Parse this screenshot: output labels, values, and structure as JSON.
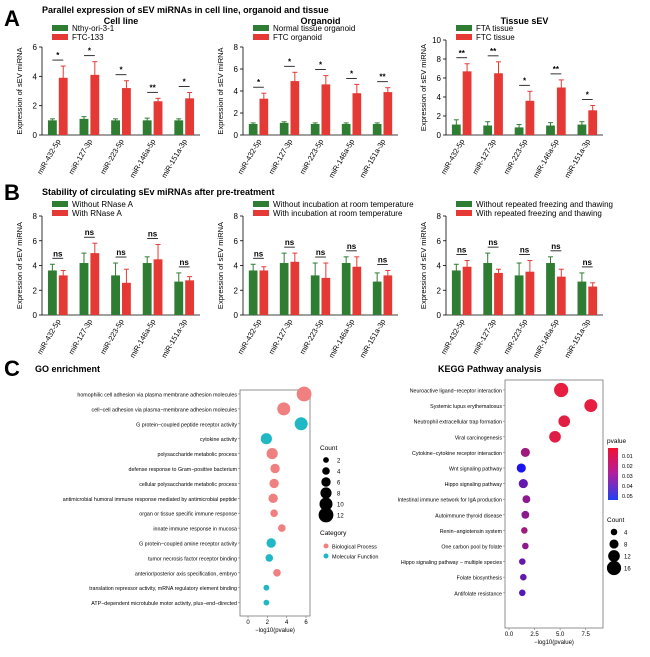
{
  "page": {
    "section_a": "A",
    "section_b": "B",
    "section_c": "C",
    "title_a": "Parallel expression of sEV miRNAs in cell line, organoid and tissue",
    "title_b": "Stability of circulating sEv miRNAs after pre-treatment"
  },
  "colors": {
    "green": "#2e7d32",
    "red": "#e53935"
  },
  "chart_data": [
    {
      "id": "a1",
      "type": "bar",
      "title": "Cell line",
      "ylabel": "Expression of sEV miRNA",
      "ylim": [
        0,
        6
      ],
      "yticks": [
        0,
        2,
        4,
        6
      ],
      "categories": [
        "miR-432-5p",
        "miR-127-3p",
        "miR-223-5p",
        "miR-146a-5p",
        "miR-151a-3p"
      ],
      "series": [
        {
          "name": "Nthy-ori-3-1",
          "values": [
            1.0,
            1.1,
            1.0,
            1.0,
            1.0
          ],
          "errors": [
            0.1,
            0.15,
            0.1,
            0.15,
            0.1
          ]
        },
        {
          "name": "FTC-133",
          "values": [
            3.9,
            4.1,
            3.2,
            2.3,
            2.5
          ],
          "errors": [
            0.8,
            0.9,
            0.5,
            0.2,
            0.4
          ]
        }
      ],
      "significance": [
        "*",
        "*",
        "*",
        "**",
        "*"
      ]
    },
    {
      "id": "a2",
      "type": "bar",
      "title": "Organoid",
      "ylabel": "Expression of sEV miRNA",
      "ylim": [
        0,
        8
      ],
      "yticks": [
        0,
        2,
        4,
        6,
        8
      ],
      "categories": [
        "miR-432-5p",
        "miR-127-3p",
        "miR-223-5p",
        "miR-146a-5p",
        "miR-151a-3p"
      ],
      "series": [
        {
          "name": "Normal tissue organoid",
          "values": [
            1.0,
            1.1,
            1.0,
            1.0,
            1.0
          ],
          "errors": [
            0.1,
            0.1,
            0.1,
            0.1,
            0.1
          ]
        },
        {
          "name": "FTC organoid",
          "values": [
            3.3,
            4.9,
            4.6,
            3.8,
            3.9
          ],
          "errors": [
            0.5,
            0.8,
            0.8,
            0.8,
            0.4
          ]
        }
      ],
      "significance": [
        "*",
        "*",
        "*",
        "*",
        "**"
      ]
    },
    {
      "id": "a3",
      "type": "bar",
      "title": "Tissue sEV",
      "ylabel": "Expression of sEV miRNA",
      "ylim": [
        0,
        10
      ],
      "yticks": [
        0,
        2,
        4,
        6,
        8,
        10
      ],
      "categories": [
        "miR-432-5p",
        "miR-127-3p",
        "miR-223-5p",
        "miR-146a-5p",
        "miR-151a-3p"
      ],
      "series": [
        {
          "name": "FTA tissue",
          "values": [
            1.1,
            1.0,
            0.8,
            1.0,
            1.1
          ],
          "errors": [
            0.5,
            0.4,
            0.3,
            0.3,
            0.3
          ]
        },
        {
          "name": "FTC tissue",
          "values": [
            6.7,
            6.5,
            3.6,
            5.0,
            2.6
          ],
          "errors": [
            0.8,
            1.2,
            1.0,
            0.8,
            0.5
          ]
        }
      ],
      "significance": [
        "**",
        "**",
        "*",
        "**",
        "*"
      ]
    },
    {
      "id": "b1",
      "type": "bar",
      "title": "",
      "ylabel": "Expression of sEV miRNA",
      "ylim": [
        0,
        8
      ],
      "yticks": [
        0,
        2,
        4,
        6,
        8
      ],
      "categories": [
        "miR-432-5p",
        "miR-127-3p",
        "miR-223-5p",
        "miR-146a-5p",
        "miR-151a-3p"
      ],
      "series": [
        {
          "name": "Without RNase A",
          "values": [
            3.6,
            4.2,
            3.2,
            4.2,
            2.7
          ],
          "errors": [
            0.5,
            0.8,
            1.0,
            0.5,
            0.7
          ]
        },
        {
          "name": "With RNase A",
          "values": [
            3.2,
            5.0,
            2.6,
            4.5,
            2.8
          ],
          "errors": [
            0.4,
            0.8,
            1.1,
            1.2,
            0.3
          ]
        }
      ],
      "significance": [
        "ns",
        "ns",
        "ns",
        "ns",
        "ns"
      ]
    },
    {
      "id": "b2",
      "type": "bar",
      "title": "",
      "ylabel": "Expression of sEV miRNA",
      "ylim": [
        0,
        8
      ],
      "yticks": [
        0,
        2,
        4,
        6,
        8
      ],
      "categories": [
        "miR-432-5p",
        "miR-127-3p",
        "miR-223-5p",
        "miR-146a-5p",
        "miR-151a-3p"
      ],
      "series": [
        {
          "name": "Without incubation at room temperature",
          "values": [
            3.6,
            4.2,
            3.2,
            4.2,
            2.7
          ],
          "errors": [
            0.5,
            0.8,
            1.0,
            0.5,
            0.7
          ]
        },
        {
          "name": "With incubation at room temperature",
          "values": [
            3.6,
            4.3,
            3.0,
            3.9,
            3.2
          ],
          "errors": [
            0.3,
            0.7,
            1.2,
            0.8,
            0.4
          ]
        }
      ],
      "significance": [
        "ns",
        "ns",
        "ns",
        "ns",
        "ns"
      ]
    },
    {
      "id": "b3",
      "type": "bar",
      "title": "",
      "ylabel": "Expression of sEV miRNA",
      "ylim": [
        0,
        8
      ],
      "yticks": [
        0,
        2,
        4,
        6,
        8
      ],
      "categories": [
        "miR-432-5p",
        "miR-127-3p",
        "miR-223-5p",
        "miR-146a-5p",
        "miR-151a-3p"
      ],
      "series": [
        {
          "name": "Without repeated freezing and thawing",
          "values": [
            3.6,
            4.2,
            3.2,
            4.2,
            2.7
          ],
          "errors": [
            0.5,
            0.8,
            1.0,
            0.5,
            0.7
          ]
        },
        {
          "name": "With repeated freezing and thawing",
          "values": [
            3.9,
            3.4,
            3.5,
            3.1,
            2.3
          ],
          "errors": [
            0.5,
            0.3,
            0.9,
            0.6,
            0.3
          ]
        }
      ],
      "significance": [
        "ns",
        "ns",
        "ns",
        "ns",
        "ns"
      ]
    },
    {
      "id": "go",
      "type": "scatter",
      "title": "GO enrichment",
      "xlabel": "−log10(pvalue)",
      "xlim": [
        0,
        6
      ],
      "xticks": [
        0,
        2,
        4,
        6
      ],
      "categories": [
        "homophilic cell adhesion via plasma membrane adhesion molecules",
        "cell−cell adhesion via plasma−membrane adhesion molecules",
        "G protein−coupled peptide receptor activity",
        "cytokine activity",
        "polysaccharide metabolic process",
        "defense response to Gram−positive bacterium",
        "cellular polysaccharide metabolic process",
        "antimicrobial humoral immune response mediated by antimicrobial peptide",
        "organ or tissue specific immune response",
        "innate immune response in mucosa",
        "G protein−coupled amine receptor activity",
        "tumor necrosis factor receptor binding",
        "anterior/posterior axis specification, embryo",
        "translation repressor activity, mRNA regulatory element binding",
        "ATP−dependent microtubule motor activity, plus−end−directed"
      ],
      "x": [
        5.8,
        3.7,
        5.5,
        1.9,
        2.5,
        2.8,
        2.7,
        2.6,
        2.7,
        3.5,
        2.4,
        2.2,
        3.0,
        1.9,
        1.9
      ],
      "count": [
        12,
        10,
        10,
        8,
        8,
        6,
        6,
        6,
        4,
        4,
        6,
        4,
        4,
        2,
        2
      ],
      "category": [
        "Biological Process",
        "Biological Process",
        "Molecular Function",
        "Molecular Function",
        "Biological Process",
        "Biological Process",
        "Biological Process",
        "Biological Process",
        "Biological Process",
        "Biological Process",
        "Molecular Function",
        "Molecular Function",
        "Biological Process",
        "Molecular Function",
        "Molecular Function"
      ],
      "legend": {
        "count_title": "Count",
        "count_values": [
          2,
          4,
          6,
          8,
          10,
          12
        ],
        "category_title": "Category",
        "category_items": [
          {
            "name": "Biological Process",
            "color": "#f08080"
          },
          {
            "name": "Molecular Function",
            "color": "#1fb8c4"
          }
        ]
      }
    },
    {
      "id": "kegg",
      "type": "scatter",
      "title": "KEGG Pathway analysis",
      "xlabel": "−log10(pvalue)",
      "xlim": [
        0,
        8.8
      ],
      "xticks": [
        0.0,
        2.5,
        5.0,
        7.5
      ],
      "xtick_labels": [
        "0.0",
        "2.5",
        "5.0",
        "7.5"
      ],
      "categories": [
        "Neuroactive ligand−receptor interaction",
        "Systemic lupus erythematosus",
        "Neutrophil extracellular trap formation",
        "Viral carcinogenesis",
        "Cytokine−cytokine receptor interaction",
        "Wnt signaling pathway",
        "Hippo signaling pathway",
        "Intestinal immune network for IgA production",
        "Autoimmune thyroid disease",
        "Renin−angiotensin system",
        "One carbon pool by folate",
        "Hippo signaling pathway − multiple species",
        "Folate biosynthesis",
        "Antifolate resistance"
      ],
      "x": [
        5.1,
        8.0,
        5.4,
        4.5,
        1.6,
        1.2,
        1.4,
        1.7,
        1.6,
        1.5,
        1.6,
        1.3,
        1.4,
        1.3
      ],
      "count": [
        16,
        14,
        12,
        12,
        8,
        8,
        8,
        6,
        6,
        4,
        4,
        4,
        4,
        4
      ],
      "pvalue": [
        0.001,
        0.001,
        0.002,
        0.003,
        0.02,
        0.055,
        0.035,
        0.025,
        0.025,
        0.02,
        0.025,
        0.035,
        0.035,
        0.04
      ],
      "legend": {
        "pvalue_title": "pvalue",
        "pvalue_ticks": [
          "0.01",
          "0.02",
          "0.03",
          "0.04",
          "0.05"
        ],
        "count_title": "Count",
        "count_values": [
          4,
          8,
          12,
          16
        ]
      }
    }
  ]
}
